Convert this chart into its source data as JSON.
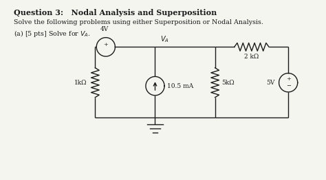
{
  "title": "Question 3:   Nodal Analysis and Superposition",
  "subtitle": "Solve the following problems using either Superposition or Nodal Analysis.",
  "part_a": "(a) [5 pts] Solve for $V_A$.",
  "background_color": "#f5f5f0",
  "text_color": "#1a1a1a",
  "circuit": {
    "resistor_1k_label": "1kΩ",
    "resistor_2k_label": "2 kΩ",
    "resistor_5k_label": "5kΩ",
    "source_4v_label": "4V",
    "source_5v_label": "5V",
    "current_source_label": "10.5 mA",
    "va_label": "$V_A$"
  }
}
